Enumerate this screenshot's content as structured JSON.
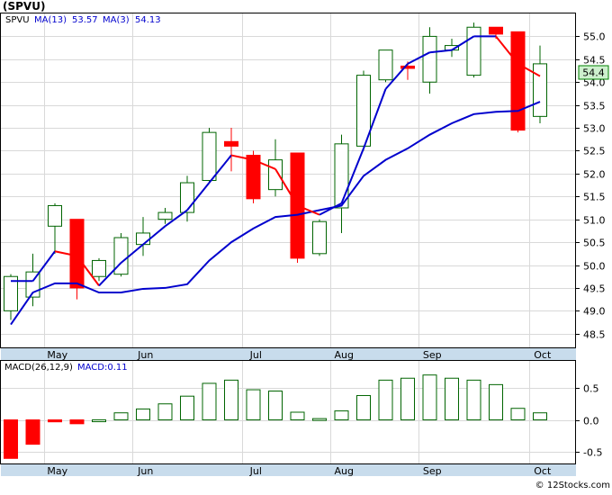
{
  "title": "(SPVU)",
  "watermark": "© 12Stocks.com",
  "price_legend": {
    "symbol": "SPVU",
    "ma13_label": "MA(13)",
    "ma13_value": "53.57",
    "ma3_label": "MA(3)",
    "ma3_value": "54.13"
  },
  "last_price_label": "54.4",
  "macd_legend": {
    "label": "MACD(26,12,9)",
    "value_label": "MACD:0.11"
  },
  "colors": {
    "bull": "#006400",
    "bear": "#ff0000",
    "ma13": "#0000cd",
    "ma3": "#ff0000",
    "axis_band": "#c8dcec",
    "grid": "#d9d9d9",
    "last_price_bg": "#cdf0cd"
  },
  "chart_data": [
    {
      "type": "candlestick",
      "title": "(SPVU)",
      "ylim": [
        48.2,
        55.5
      ],
      "yticks": [
        48.5,
        49.0,
        49.5,
        50.0,
        50.5,
        51.0,
        51.5,
        52.0,
        52.5,
        53.0,
        53.5,
        54.0,
        54.5,
        55.0
      ],
      "ytick_labels": [
        "48.5",
        "49.0",
        "49.5",
        "50.0",
        "50.5",
        "51.0",
        "51.5",
        "52.0",
        "52.5",
        "53.0",
        "53.5",
        "54.0",
        "54.5",
        "55.0"
      ],
      "xtick_labels": [
        "May",
        "Jun",
        "Jul",
        "Aug",
        "Sep",
        "Oct"
      ],
      "xtick_index": [
        1,
        5,
        10,
        14,
        18,
        23
      ],
      "grid": true,
      "series_candles": [
        {
          "open": 49.0,
          "high": 49.8,
          "low": 48.8,
          "close": 49.75
        },
        {
          "open": 49.3,
          "high": 50.25,
          "low": 49.1,
          "close": 49.85
        },
        {
          "open": 50.85,
          "high": 51.35,
          "low": 50.25,
          "close": 51.3
        },
        {
          "open": 51.0,
          "high": 51.0,
          "low": 49.25,
          "close": 49.5
        },
        {
          "open": 49.75,
          "high": 50.15,
          "low": 49.65,
          "close": 50.1
        },
        {
          "open": 49.8,
          "high": 50.7,
          "low": 49.75,
          "close": 50.6
        },
        {
          "open": 50.45,
          "high": 51.05,
          "low": 50.2,
          "close": 50.7
        },
        {
          "open": 51.0,
          "high": 51.25,
          "low": 50.9,
          "close": 51.15
        },
        {
          "open": 51.15,
          "high": 51.95,
          "low": 50.95,
          "close": 51.8
        },
        {
          "open": 51.85,
          "high": 53.0,
          "low": 51.8,
          "close": 52.9
        },
        {
          "open": 52.7,
          "high": 53.0,
          "low": 52.05,
          "close": 52.6
        },
        {
          "open": 52.4,
          "high": 52.5,
          "low": 51.35,
          "close": 51.45
        },
        {
          "open": 51.65,
          "high": 52.75,
          "low": 51.5,
          "close": 52.3
        },
        {
          "open": 52.45,
          "high": 52.45,
          "low": 50.05,
          "close": 50.15
        },
        {
          "open": 50.25,
          "high": 51.0,
          "low": 50.2,
          "close": 50.95
        },
        {
          "open": 51.25,
          "high": 52.85,
          "low": 50.7,
          "close": 52.65
        },
        {
          "open": 52.6,
          "high": 54.25,
          "low": 52.5,
          "close": 54.15
        },
        {
          "open": 54.05,
          "high": 54.7,
          "low": 54.0,
          "close": 54.7
        },
        {
          "open": 54.35,
          "high": 54.45,
          "low": 54.05,
          "close": 54.3
        },
        {
          "open": 54.0,
          "high": 55.2,
          "low": 53.75,
          "close": 55.0
        },
        {
          "open": 54.7,
          "high": 54.95,
          "low": 54.55,
          "close": 54.8
        },
        {
          "open": 54.15,
          "high": 55.3,
          "low": 54.1,
          "close": 55.2
        },
        {
          "open": 55.2,
          "high": 55.2,
          "low": 54.95,
          "close": 55.05
        },
        {
          "open": 55.1,
          "high": 55.1,
          "low": 52.9,
          "close": 52.95
        },
        {
          "open": 53.25,
          "high": 54.8,
          "low": 53.1,
          "close": 54.4
        }
      ],
      "series": [
        {
          "name": "MA(13)",
          "values": [
            48.7,
            49.4,
            49.6,
            49.6,
            49.4,
            49.4,
            49.48,
            49.5,
            49.58,
            50.1,
            50.5,
            50.8,
            51.05,
            51.1,
            51.2,
            51.3,
            51.95,
            52.3,
            52.55,
            52.85,
            53.1,
            53.3,
            53.35,
            53.37,
            53.57
          ]
        },
        {
          "name": "MA(3)",
          "values": [
            49.65,
            49.65,
            50.3,
            50.2,
            49.55,
            50.05,
            50.45,
            50.85,
            51.2,
            51.8,
            52.4,
            52.3,
            52.1,
            51.3,
            51.1,
            51.35,
            52.55,
            53.85,
            54.4,
            54.65,
            54.7,
            55.0,
            55.0,
            54.4,
            54.13
          ]
        }
      ]
    },
    {
      "type": "bar",
      "title": "MACD(26,12,9)",
      "ylim": [
        -0.68,
        0.92
      ],
      "yticks": [
        -0.5,
        0.0,
        0.5
      ],
      "ytick_labels": [
        "-0.5",
        "0.0",
        "0.5"
      ],
      "xtick_labels": [
        "May",
        "Jun",
        "Jul",
        "Aug",
        "Sep",
        "Oct"
      ],
      "xtick_index": [
        1,
        5,
        10,
        14,
        18,
        23
      ],
      "values": [
        -0.6,
        -0.38,
        -0.03,
        -0.06,
        0.0,
        0.11,
        0.17,
        0.25,
        0.37,
        0.57,
        0.62,
        0.47,
        0.45,
        0.12,
        0.02,
        0.14,
        0.38,
        0.62,
        0.65,
        0.7,
        0.65,
        0.62,
        0.55,
        0.18,
        0.11
      ]
    }
  ]
}
